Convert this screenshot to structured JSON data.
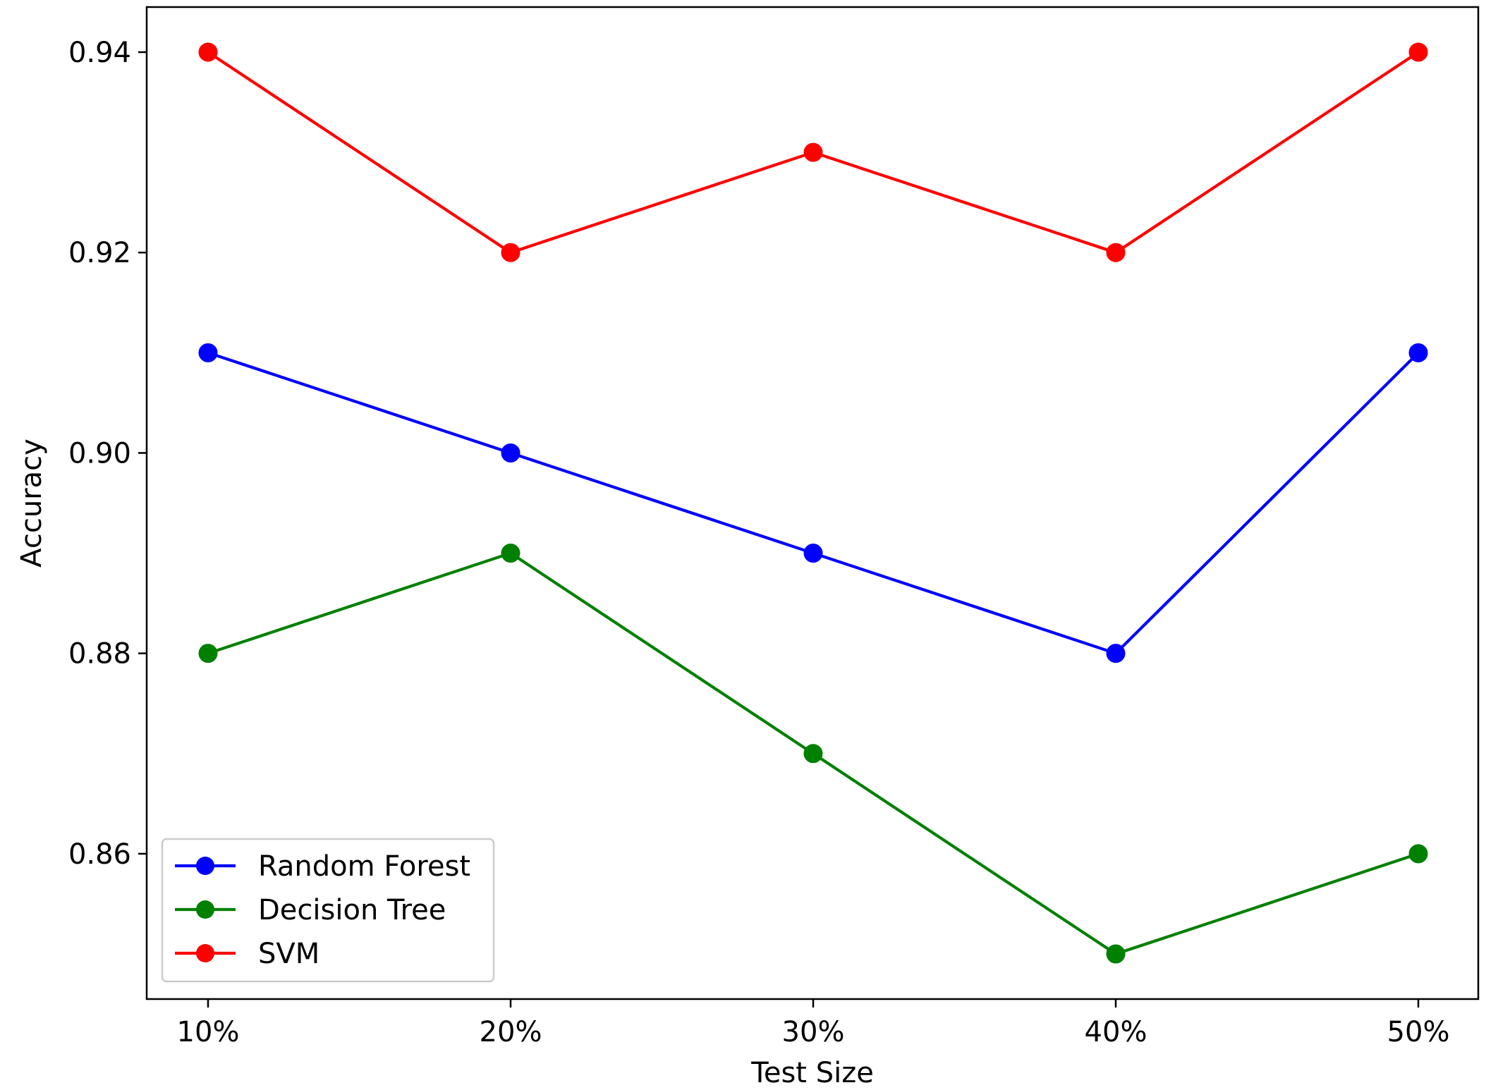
{
  "chart_data": {
    "type": "line",
    "title": "",
    "xlabel": "Test Size",
    "ylabel": "Accuracy",
    "categories": [
      "10%",
      "20%",
      "30%",
      "40%",
      "50%"
    ],
    "ylim": [
      0.8455,
      0.9445
    ],
    "yticks": [
      0.86,
      0.88,
      0.9,
      0.92,
      0.94
    ],
    "ytick_labels": [
      "0.86",
      "0.88",
      "0.90",
      "0.92",
      "0.94"
    ],
    "grid": false,
    "legend_position": "lower-left",
    "marker": "circle",
    "series": [
      {
        "name": "Random Forest",
        "color": "#0000ff",
        "values": [
          0.91,
          0.9,
          0.89,
          0.88,
          0.91
        ]
      },
      {
        "name": "Decision Tree",
        "color": "#008000",
        "values": [
          0.88,
          0.89,
          0.87,
          0.85,
          0.86
        ]
      },
      {
        "name": "SVM",
        "color": "#ff0000",
        "values": [
          0.94,
          0.92,
          0.93,
          0.92,
          0.94
        ]
      }
    ]
  }
}
